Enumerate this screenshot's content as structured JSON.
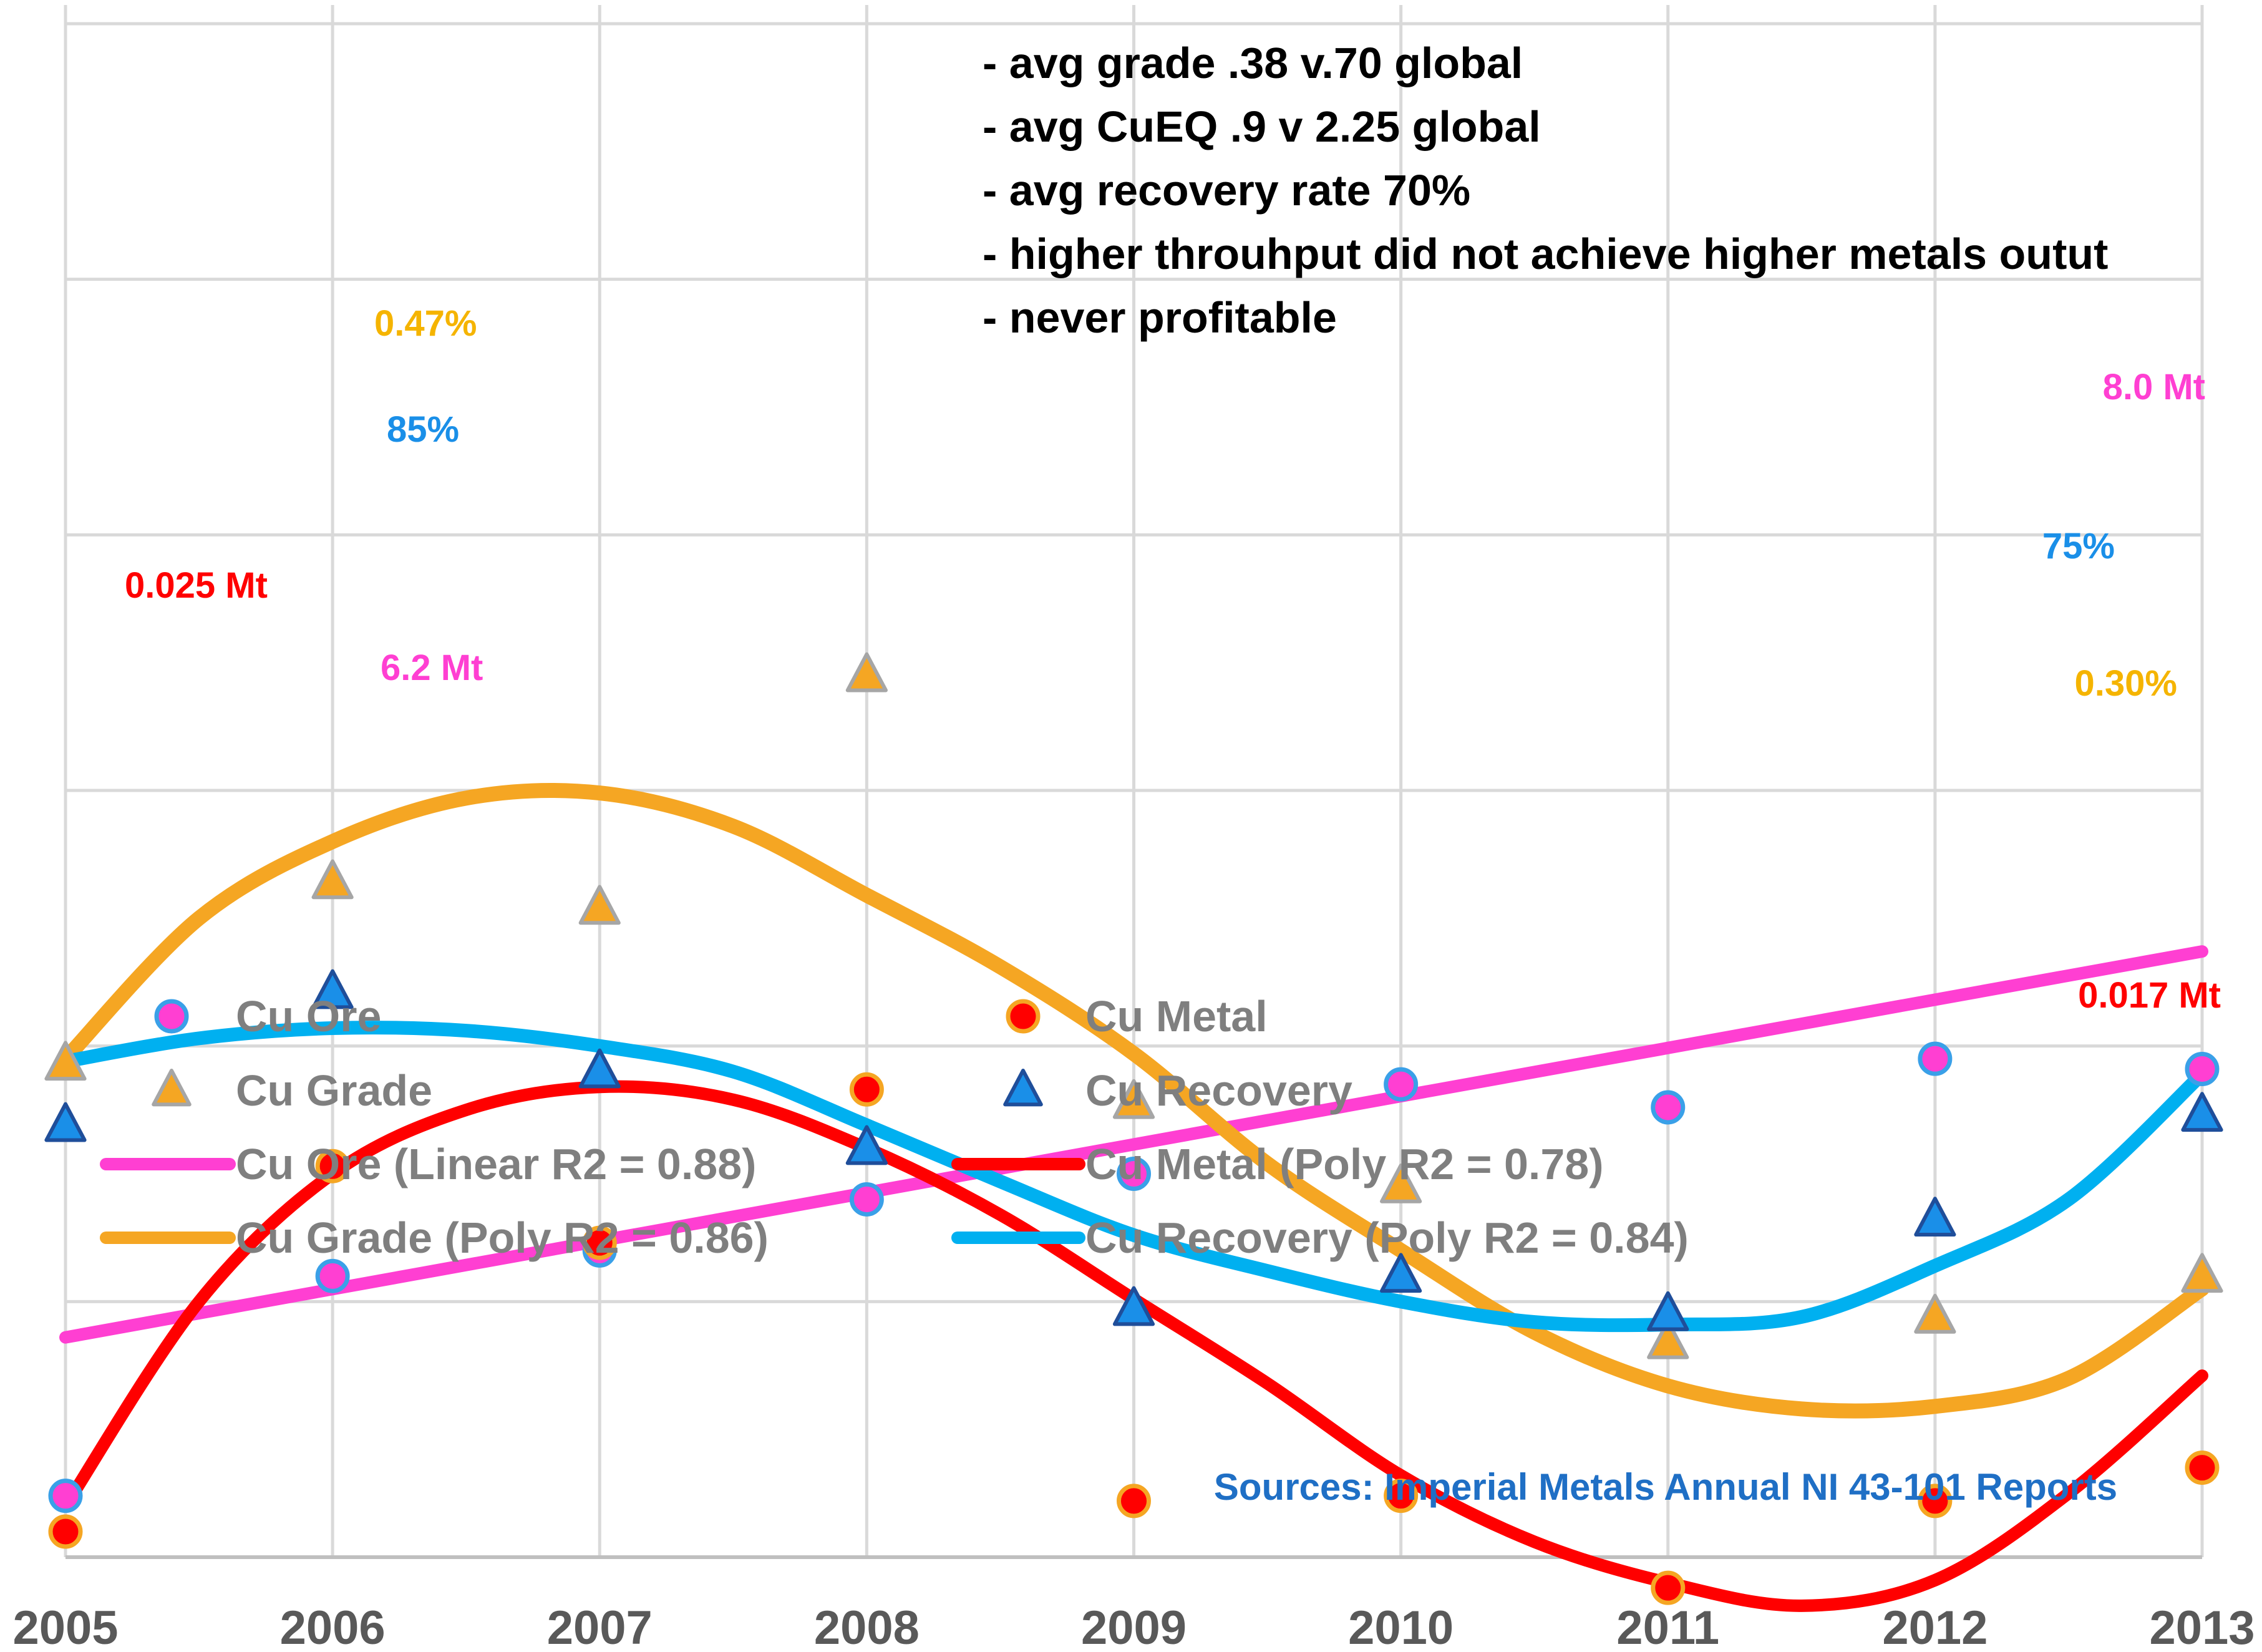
{
  "chart_data": {
    "type": "scatter",
    "title": "",
    "xlabel": "",
    "ylabel": "",
    "x": [
      2005,
      2006,
      2007,
      2008,
      2009,
      2010,
      2011,
      2012,
      2013
    ],
    "x_tick_labels": [
      "2005",
      "2006",
      "2007",
      "2008",
      "2009",
      "2010",
      "2011",
      "2012",
      "2013"
    ],
    "xlim": [
      2005,
      2013
    ],
    "ylim": [
      0,
      6
    ],
    "y_axis_note": "no y-axis tick labels shown; values are plotted relative to the gridline scale (0 = bottom axis, 6 = top)",
    "grid": true,
    "series": [
      {
        "name": "Cu Ore",
        "marker": "circle",
        "color": "#ff3fd2",
        "values": [
          0.24,
          1.1,
          1.2,
          1.4,
          1.5,
          1.85,
          1.76,
          1.95,
          1.91
        ]
      },
      {
        "name": "Cu Metal",
        "marker": "circle",
        "color": "#ff0000",
        "values": [
          0.1,
          1.53,
          1.23,
          1.83,
          0.22,
          0.24,
          -0.12,
          0.22,
          0.35
        ]
      },
      {
        "name": "Cu Grade",
        "marker": "triangle",
        "color": "#f5a623",
        "values": [
          1.93,
          2.64,
          2.54,
          3.45,
          1.78,
          1.45,
          0.84,
          0.94,
          1.1
        ]
      },
      {
        "name": "Cu Recovery",
        "marker": "triangle",
        "color": "#1a8fe8",
        "values": [
          1.69,
          2.21,
          1.9,
          1.6,
          0.97,
          1.1,
          0.95,
          1.32,
          1.73
        ]
      }
    ],
    "trendlines": [
      {
        "name": "Cu Ore (Linear R2 = 0.88)",
        "color": "#ff3fd2",
        "points": [
          [
            2005,
            0.86
          ],
          [
            2013,
            2.37
          ]
        ]
      },
      {
        "name": "Cu Metal (Poly R2 = 0.78)",
        "color": "#ff0000",
        "points": [
          [
            2005,
            0.2
          ],
          [
            2005.5,
            1.0
          ],
          [
            2006,
            1.5
          ],
          [
            2006.5,
            1.75
          ],
          [
            2007,
            1.84
          ],
          [
            2007.5,
            1.79
          ],
          [
            2008,
            1.6
          ],
          [
            2008.5,
            1.34
          ],
          [
            2009,
            1.01
          ],
          [
            2009.5,
            0.68
          ],
          [
            2010,
            0.32
          ],
          [
            2010.5,
            0.06
          ],
          [
            2011,
            -0.1
          ],
          [
            2011.5,
            -0.19
          ],
          [
            2012,
            -0.09
          ],
          [
            2012.5,
            0.25
          ],
          [
            2013,
            0.71
          ]
        ]
      },
      {
        "name": "Cu Grade (Poly R2 = 0.86)",
        "color": "#f5a623",
        "points": [
          [
            2005,
            1.95
          ],
          [
            2005.5,
            2.5
          ],
          [
            2006,
            2.8
          ],
          [
            2006.5,
            2.97
          ],
          [
            2007,
            2.99
          ],
          [
            2007.5,
            2.86
          ],
          [
            2008,
            2.59
          ],
          [
            2008.5,
            2.31
          ],
          [
            2009,
            1.97
          ],
          [
            2009.5,
            1.54
          ],
          [
            2010,
            1.2
          ],
          [
            2010.5,
            0.88
          ],
          [
            2011,
            0.67
          ],
          [
            2011.5,
            0.58
          ],
          [
            2012,
            0.59
          ],
          [
            2012.5,
            0.7
          ],
          [
            2013,
            1.05
          ]
        ]
      },
      {
        "name": "Cu Recovery (Poly R2 = 0.84)",
        "color": "#00b0f0",
        "points": [
          [
            2005,
            1.94
          ],
          [
            2005.5,
            2.03
          ],
          [
            2006,
            2.07
          ],
          [
            2006.5,
            2.06
          ],
          [
            2007,
            2.0
          ],
          [
            2007.5,
            1.9
          ],
          [
            2008,
            1.69
          ],
          [
            2008.5,
            1.47
          ],
          [
            2009,
            1.26
          ],
          [
            2009.5,
            1.12
          ],
          [
            2010,
            1.0
          ],
          [
            2010.5,
            0.92
          ],
          [
            2011,
            0.91
          ],
          [
            2011.5,
            0.94
          ],
          [
            2012,
            1.14
          ],
          [
            2012.5,
            1.4
          ],
          [
            2013,
            1.89
          ]
        ]
      }
    ],
    "data_labels": [
      {
        "text": "0.47%",
        "color": "#f5b400"
      },
      {
        "text": "85%",
        "color": "#1a8fe8"
      },
      {
        "text": "0.025 Mt",
        "color": "#ff0000"
      },
      {
        "text": "6.2 Mt",
        "color": "#ff3fd2"
      },
      {
        "text": "8.0 Mt",
        "color": "#ff3fd2"
      },
      {
        "text": "75%",
        "color": "#1a8fe8"
      },
      {
        "text": "0.30%",
        "color": "#f5b400"
      },
      {
        "text": "0.017 Mt",
        "color": "#ff0000"
      }
    ],
    "annotations": [
      "- avg grade .38 v.70 global",
      "- avg CuEQ .9 v 2.25 global",
      "- avg recovery rate 70%",
      "- higher throuhput did  not achieve higher metals outut",
      "- never profitable"
    ],
    "legend": {
      "placement": "middle",
      "entries": [
        {
          "label": "Cu Ore",
          "kind": "circle",
          "color": "#ff3fd2"
        },
        {
          "label": "Cu Metal",
          "kind": "circle",
          "color": "#ff0000"
        },
        {
          "label": "Cu Grade",
          "kind": "triangle",
          "color": "#f5a623"
        },
        {
          "label": "Cu Recovery",
          "kind": "triangle",
          "color": "#1a8fe8"
        },
        {
          "label": "Cu Ore (Linear R2 = 0.88)",
          "kind": "line",
          "color": "#ff3fd2"
        },
        {
          "label": "Cu Metal (Poly R2 = 0.78)",
          "kind": "line",
          "color": "#ff0000"
        },
        {
          "label": "Cu Grade (Poly R2 = 0.86)",
          "kind": "line",
          "color": "#f5a623"
        },
        {
          "label": "Cu Recovery (Poly R2 = 0.84)",
          "kind": "line",
          "color": "#00b0f0"
        }
      ]
    },
    "source": "Sources: Imperial Metals Annual NI 43-101 Reports"
  },
  "colors": {
    "grid": "#d9d9d9",
    "axis_text": "#595959",
    "legend_text": "#7f7f7f",
    "annotation_text": "#000000",
    "source_text": "#1f6fc5",
    "marker_edge_ore": "#3aa0e8",
    "marker_edge_metal": "#f5a623",
    "marker_edge_grade": "#a6a6a6",
    "marker_edge_recovery": "#1f4e9a"
  }
}
